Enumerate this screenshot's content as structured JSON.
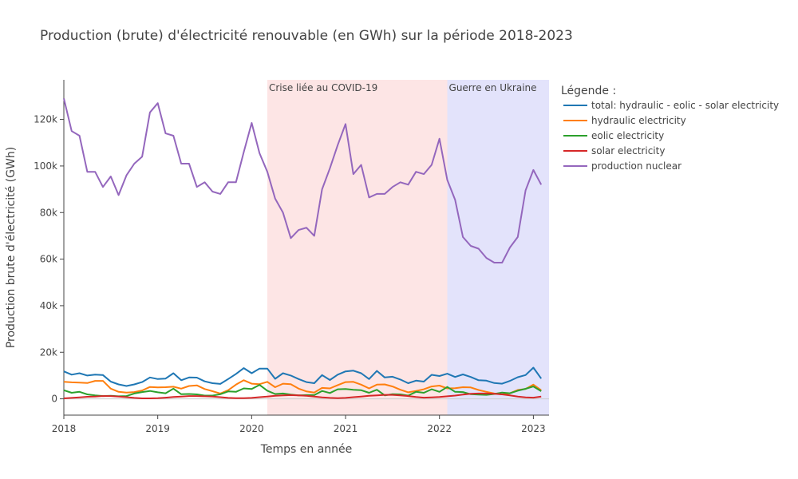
{
  "chart_data": {
    "type": "line",
    "title": "Production (brute) d'électricité renouvable (en GWh) sur la période 2018-2023",
    "xlabel": "Temps en année",
    "ylabel": "Production brute d'électricité (GWh)",
    "x_start": "2018-01",
    "x_range": [
      "2018-01",
      "2023-03"
    ],
    "y_range": [
      -7000,
      137000
    ],
    "x_ticks": [
      "2018",
      "2019",
      "2020",
      "2021",
      "2022",
      "2023"
    ],
    "y_ticks": [
      {
        "value": 0,
        "label": "0"
      },
      {
        "value": 20000,
        "label": "20k"
      },
      {
        "value": 40000,
        "label": "40k"
      },
      {
        "value": 60000,
        "label": "60k"
      },
      {
        "value": 80000,
        "label": "80k"
      },
      {
        "value": 100000,
        "label": "100k"
      },
      {
        "value": 120000,
        "label": "120k"
      }
    ],
    "legend_title": "Légende :",
    "legend_position": "right",
    "regions": [
      {
        "label": "Crise liée au COVID-19",
        "start": "2020-03",
        "end": "2022-02",
        "color": "#fde5e5"
      },
      {
        "label": "Guerre en Ukraine",
        "start": "2022-02",
        "end": "2023-03",
        "color": "#e3e3fb"
      }
    ],
    "series": [
      {
        "name": "total: hydraulic - eolic - solar electricity",
        "color": "#1f77b4",
        "values": [
          11800,
          10400,
          11000,
          10000,
          10400,
          10200,
          7400,
          6200,
          5500,
          6200,
          7200,
          9200,
          8500,
          8700,
          11000,
          8000,
          9200,
          9100,
          7500,
          6700,
          6400,
          8500,
          10700,
          13200,
          11000,
          13000,
          13000,
          8600,
          11000,
          10000,
          8500,
          7200,
          6700,
          10200,
          8100,
          10400,
          11800,
          12100,
          11000,
          8500,
          12000,
          9200,
          9500,
          8300,
          6700,
          7800,
          7400,
          10300,
          9800,
          10800,
          9400,
          10500,
          9400,
          8000,
          7800,
          6800,
          6500,
          7700,
          9300,
          10200,
          13400,
          8700
        ]
      },
      {
        "name": "hydraulic electricity",
        "color": "#ff7f0e",
        "values": [
          7300,
          7100,
          7000,
          6800,
          7700,
          7700,
          4400,
          3000,
          2700,
          2900,
          3600,
          5100,
          4900,
          5000,
          5200,
          4400,
          5500,
          5800,
          4200,
          3300,
          2300,
          3700,
          6100,
          8000,
          6500,
          6300,
          7300,
          5000,
          6500,
          6300,
          4400,
          3200,
          2700,
          4700,
          4500,
          5900,
          7200,
          7300,
          6100,
          4500,
          6100,
          6200,
          5300,
          3900,
          2800,
          3400,
          4100,
          5300,
          5700,
          4500,
          4600,
          5000,
          4900,
          3800,
          3000,
          2300,
          1900,
          2400,
          3800,
          4200,
          6100,
          3700
        ]
      },
      {
        "name": "eolic electricity",
        "color": "#2ca02c",
        "values": [
          3700,
          2600,
          3000,
          1900,
          1500,
          1200,
          1300,
          1100,
          1200,
          2300,
          2900,
          3400,
          2800,
          2400,
          4400,
          2000,
          2100,
          1900,
          1400,
          1400,
          2000,
          3200,
          3000,
          4500,
          4200,
          6000,
          3500,
          2100,
          2300,
          1800,
          1500,
          1600,
          1600,
          3400,
          2500,
          4100,
          4200,
          3900,
          3700,
          2600,
          3900,
          1500,
          2000,
          1900,
          1400,
          3000,
          2600,
          4100,
          3000,
          5100,
          3000,
          2900,
          2000,
          1800,
          1700,
          2100,
          2700,
          2400,
          3500,
          4300,
          5300,
          3300
        ]
      },
      {
        "name": "solar electricity",
        "color": "#d62728",
        "values": [
          200,
          400,
          600,
          900,
          1000,
          1200,
          1200,
          1000,
          700,
          400,
          200,
          200,
          300,
          500,
          800,
          1000,
          1200,
          1200,
          1100,
          1000,
          700,
          400,
          300,
          300,
          400,
          700,
          1000,
          1300,
          1500,
          1600,
          1500,
          1300,
          1000,
          600,
          400,
          300,
          400,
          700,
          1000,
          1300,
          1500,
          1700,
          1700,
          1500,
          1200,
          800,
          500,
          600,
          800,
          1100,
          1400,
          1800,
          2200,
          2300,
          2300,
          2200,
          1900,
          1500,
          1000,
          600,
          500,
          1000
        ]
      },
      {
        "name": "production nuclear",
        "color": "#9467bd",
        "values": [
          129000,
          115000,
          113000,
          97500,
          97500,
          91000,
          95500,
          87500,
          96000,
          101000,
          104000,
          123000,
          127000,
          114000,
          113000,
          101000,
          101000,
          91000,
          93000,
          89000,
          88000,
          93000,
          93000,
          106000,
          118500,
          105500,
          97500,
          86000,
          80000,
          69000,
          72500,
          73500,
          70000,
          90000,
          99000,
          109000,
          118000,
          96500,
          100500,
          86500,
          88000,
          88000,
          91000,
          93000,
          92000,
          97500,
          96500,
          100500,
          111700,
          94000,
          85500,
          69500,
          65700,
          64500,
          60500,
          58500,
          58500,
          65000,
          69500,
          89500,
          98300,
          92000
        ]
      }
    ]
  }
}
